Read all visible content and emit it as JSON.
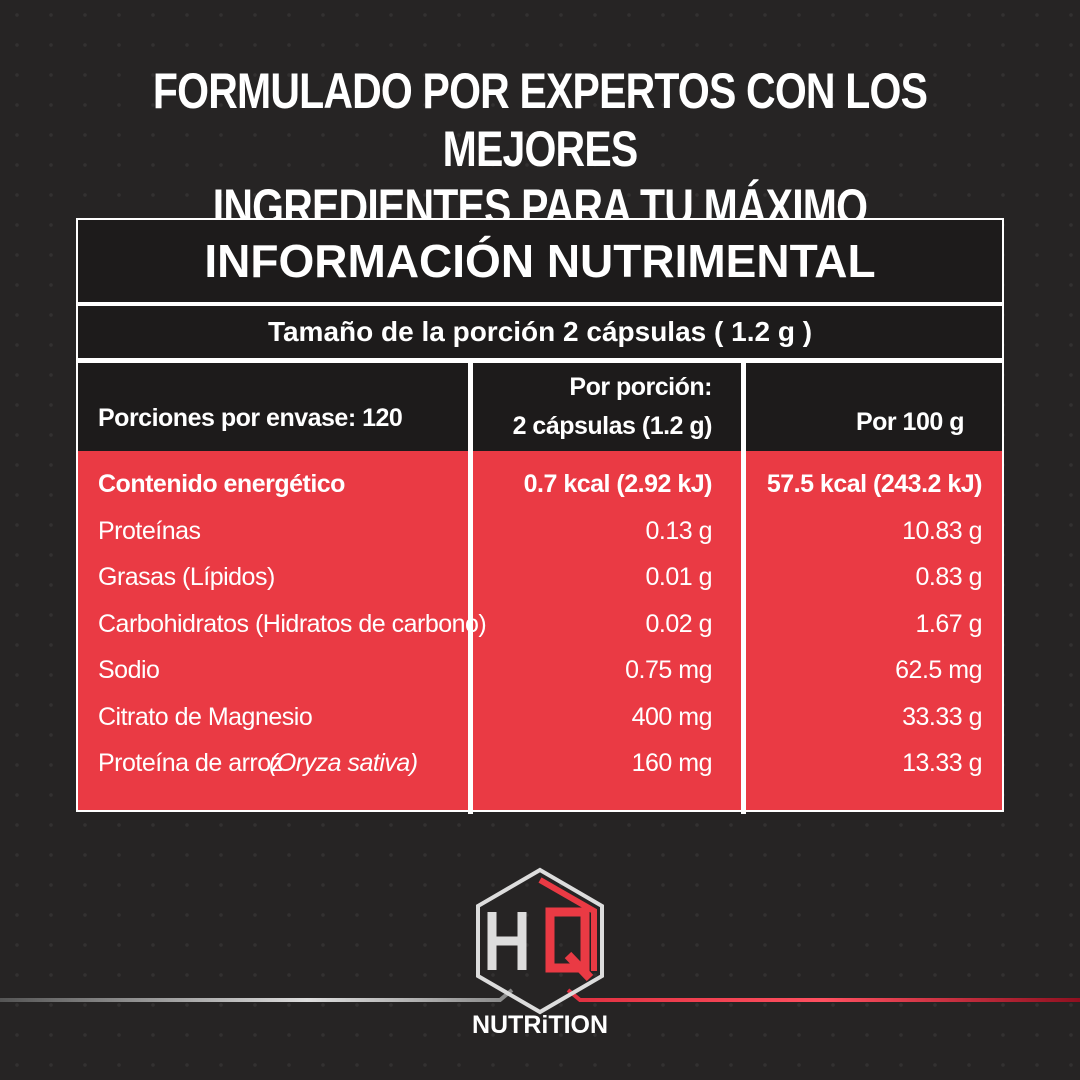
{
  "header": {
    "title_lines": [
      "FORMULADO POR EXPERTOS CON LOS MEJORES",
      "INGREDIENTES PARA TU MÁXIMO RENDIMIENTO"
    ]
  },
  "table": {
    "title": "INFORMACIÓN NUTRIMENTAL",
    "serving_size": "Tamaño de la porción 2 cápsulas ( 1.2 g )",
    "columns": [
      [
        "Porciones por envase: 120"
      ],
      [
        "Por porción:",
        "2 cápsulas (1.2 g)"
      ],
      [
        "Por 100 g"
      ]
    ],
    "rows": [
      {
        "name": [
          "Contenido energético"
        ],
        "per_serving": "0.7 kcal (2.92 kJ)",
        "per_100g": "57.5 kcal (243.2 kJ)",
        "bold": true
      },
      {
        "name": [
          "Proteínas"
        ],
        "per_serving": "0.13 g",
        "per_100g": "10.83 g"
      },
      {
        "name": [
          "Grasas (Lípidos)"
        ],
        "per_serving": "0.01 g",
        "per_100g": "0.83 g"
      },
      {
        "name": [
          "Carbohidratos (Hidratos de carbono)"
        ],
        "per_serving": "0.02 g",
        "per_100g": "1.67 g"
      },
      {
        "name": [
          "Sodio"
        ],
        "per_serving": "0.75 mg",
        "per_100g": "62.5 mg"
      },
      {
        "name": [
          "Citrato de Magnesio"
        ],
        "per_serving": "400 mg",
        "per_100g": "33.33 g"
      },
      {
        "name": [
          "Proteína de arroz",
          "(Oryza sativa)"
        ],
        "per_serving": "160 mg",
        "per_100g": "13.33 g"
      }
    ]
  },
  "logo": {
    "text": "NUTRiTION"
  }
}
